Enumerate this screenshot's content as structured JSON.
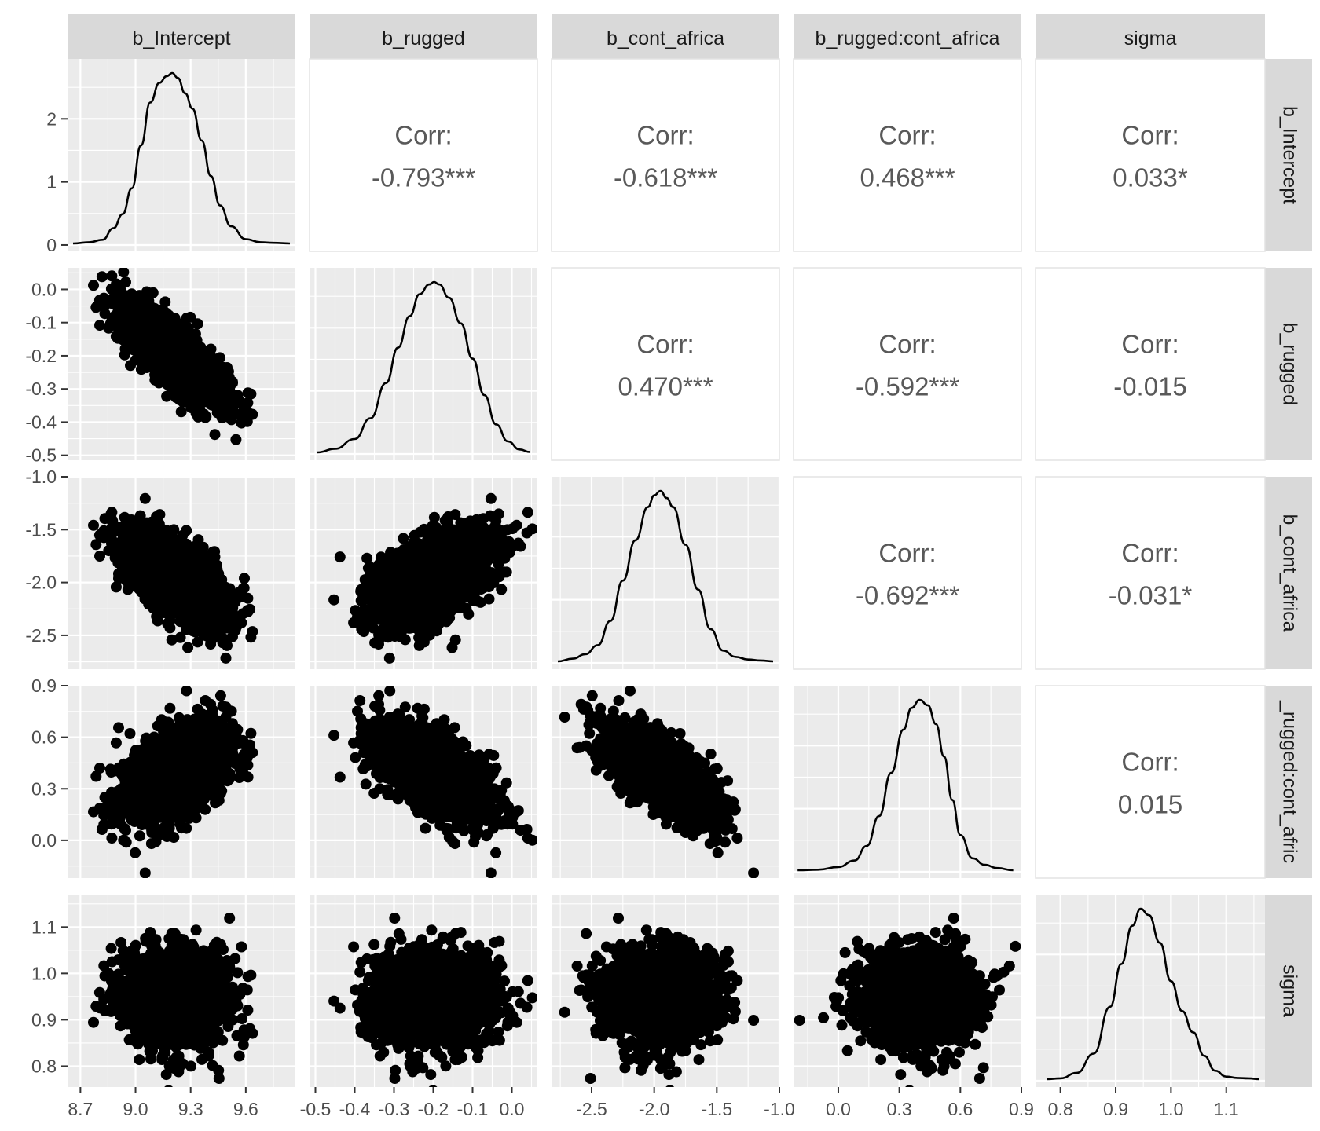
{
  "chart_data": {
    "type": "scatter-matrix",
    "title": "",
    "variables": [
      "b_Intercept",
      "b_rugged",
      "b_cont_africa",
      "b_rugged:cont_africa",
      "sigma"
    ],
    "row_strip_labels": [
      "b_Intercept",
      "b_rugged",
      "b_cont_africa",
      "_rugged:cont_afric",
      "sigma"
    ],
    "ranges": {
      "b_Intercept": [
        8.63,
        9.87
      ],
      "b_rugged": [
        -0.515,
        0.065
      ],
      "b_cont_africa": [
        -2.82,
        -1.0
      ],
      "b_rugged:cont_africa": [
        -0.22,
        0.9
      ],
      "sigma": [
        0.755,
        1.17
      ]
    },
    "ticks": {
      "b_Intercept": [
        8.7,
        9.0,
        9.3,
        9.6
      ],
      "b_rugged": [
        -0.5,
        -0.4,
        -0.3,
        -0.2,
        -0.1,
        0.0
      ],
      "b_cont_africa": [
        -2.5,
        -2.0,
        -1.5,
        -1.0
      ],
      "b_rugged:cont_africa": [
        0.0,
        0.3,
        0.6,
        0.9
      ],
      "sigma": [
        0.8,
        0.9,
        1.0,
        1.1
      ]
    },
    "x_tick_labels": [
      [
        "8.7",
        "9.0",
        "9.3",
        "9.6"
      ],
      [
        "-0.5",
        "-0.4",
        "-0.3",
        "-0.2",
        "-0.1",
        "0.0"
      ],
      [
        "-2.5",
        "-2.0",
        "-1.5",
        "-1.0"
      ],
      [
        "0.0",
        "0.3",
        "0.6",
        "0.9"
      ],
      [
        "0.8",
        "0.9",
        "1.0",
        "1.1"
      ]
    ],
    "y_tick_labels": [
      [
        "0",
        "1",
        "2"
      ],
      [
        "-0.5",
        "-0.4",
        "-0.3",
        "-0.2",
        "-0.1",
        "0.0"
      ],
      [
        "-2.5",
        "-2.0",
        "-1.5",
        "-1.0"
      ],
      [
        "0.0",
        "0.3",
        "0.6",
        "0.9"
      ],
      [
        "0.8",
        "0.9",
        "1.0",
        "1.1"
      ]
    ],
    "density_y_range": [
      -0.1,
      2.95
    ],
    "density_y_ticks": [
      0,
      1,
      2
    ],
    "correlations": [
      {
        "row": 0,
        "col": 1,
        "label": "Corr:",
        "value": "-0.793***"
      },
      {
        "row": 0,
        "col": 2,
        "label": "Corr:",
        "value": "-0.618***"
      },
      {
        "row": 0,
        "col": 3,
        "label": "Corr:",
        "value": "0.468***"
      },
      {
        "row": 0,
        "col": 4,
        "label": "Corr:",
        "value": "0.033*"
      },
      {
        "row": 1,
        "col": 2,
        "label": "Corr:",
        "value": "0.470***"
      },
      {
        "row": 1,
        "col": 3,
        "label": "Corr:",
        "value": "-0.592***"
      },
      {
        "row": 1,
        "col": 4,
        "label": "Corr:",
        "value": "-0.015"
      },
      {
        "row": 2,
        "col": 3,
        "label": "Corr:",
        "value": "-0.692***"
      },
      {
        "row": 2,
        "col": 4,
        "label": "Corr:",
        "value": "-0.031*"
      },
      {
        "row": 3,
        "col": 4,
        "label": "Corr:",
        "value": "0.015"
      }
    ],
    "densities": [
      {
        "variable": "b_Intercept",
        "x": [
          8.66,
          8.75,
          8.82,
          8.88,
          8.93,
          8.98,
          9.03,
          9.08,
          9.13,
          9.17,
          9.2,
          9.23,
          9.27,
          9.31,
          9.36,
          9.41,
          9.46,
          9.52,
          9.6,
          9.68,
          9.75,
          9.84
        ],
        "y": [
          0.0,
          0.02,
          0.06,
          0.25,
          0.48,
          0.9,
          1.6,
          2.3,
          2.62,
          2.73,
          2.78,
          2.7,
          2.45,
          2.2,
          1.68,
          1.1,
          0.62,
          0.28,
          0.07,
          0.02,
          0.01,
          0.0
        ]
      },
      {
        "variable": "b_rugged",
        "x": [
          -0.495,
          -0.45,
          -0.4,
          -0.36,
          -0.32,
          -0.29,
          -0.26,
          -0.235,
          -0.21,
          -0.198,
          -0.185,
          -0.16,
          -0.13,
          -0.1,
          -0.07,
          -0.04,
          -0.01,
          0.02,
          0.045
        ],
        "y": [
          0.0,
          0.15,
          0.55,
          1.4,
          2.85,
          4.3,
          5.6,
          6.5,
          6.9,
          7.0,
          6.9,
          6.35,
          5.3,
          3.85,
          2.35,
          1.15,
          0.45,
          0.12,
          0.02
        ]
      },
      {
        "variable": "b_cont_africa",
        "x": [
          -2.77,
          -2.65,
          -2.55,
          -2.45,
          -2.35,
          -2.25,
          -2.15,
          -2.05,
          -2.0,
          -1.95,
          -1.9,
          -1.85,
          -1.75,
          -1.65,
          -1.55,
          -1.45,
          -1.35,
          -1.25,
          -1.15,
          -1.05
        ],
        "y": [
          0.0,
          0.03,
          0.08,
          0.18,
          0.45,
          0.9,
          1.35,
          1.72,
          1.85,
          1.9,
          1.82,
          1.72,
          1.3,
          0.8,
          0.36,
          0.12,
          0.05,
          0.02,
          0.01,
          0.0
        ]
      },
      {
        "variable": "b_rugged:cont_africa",
        "x": [
          -0.2,
          -0.1,
          0.0,
          0.08,
          0.14,
          0.2,
          0.26,
          0.32,
          0.36,
          0.4,
          0.44,
          0.48,
          0.52,
          0.56,
          0.6,
          0.66,
          0.72,
          0.78,
          0.86
        ],
        "y": [
          0.0,
          0.01,
          0.06,
          0.18,
          0.45,
          1.0,
          1.8,
          2.6,
          3.0,
          3.15,
          3.05,
          2.7,
          2.1,
          1.3,
          0.65,
          0.22,
          0.1,
          0.04,
          0.0
        ]
      },
      {
        "variable": "sigma",
        "x": [
          0.775,
          0.8,
          0.83,
          0.86,
          0.89,
          0.91,
          0.93,
          0.945,
          0.96,
          0.98,
          1.0,
          1.02,
          1.04,
          1.06,
          1.08,
          1.1,
          1.12,
          1.14,
          1.16
        ],
        "y": [
          0.0,
          0.02,
          0.15,
          0.6,
          1.7,
          2.7,
          3.6,
          4.0,
          3.85,
          3.2,
          2.3,
          1.6,
          1.1,
          0.55,
          0.2,
          0.06,
          0.03,
          0.02,
          0.0
        ]
      }
    ],
    "scatter_points_per_panel": 2000
  }
}
